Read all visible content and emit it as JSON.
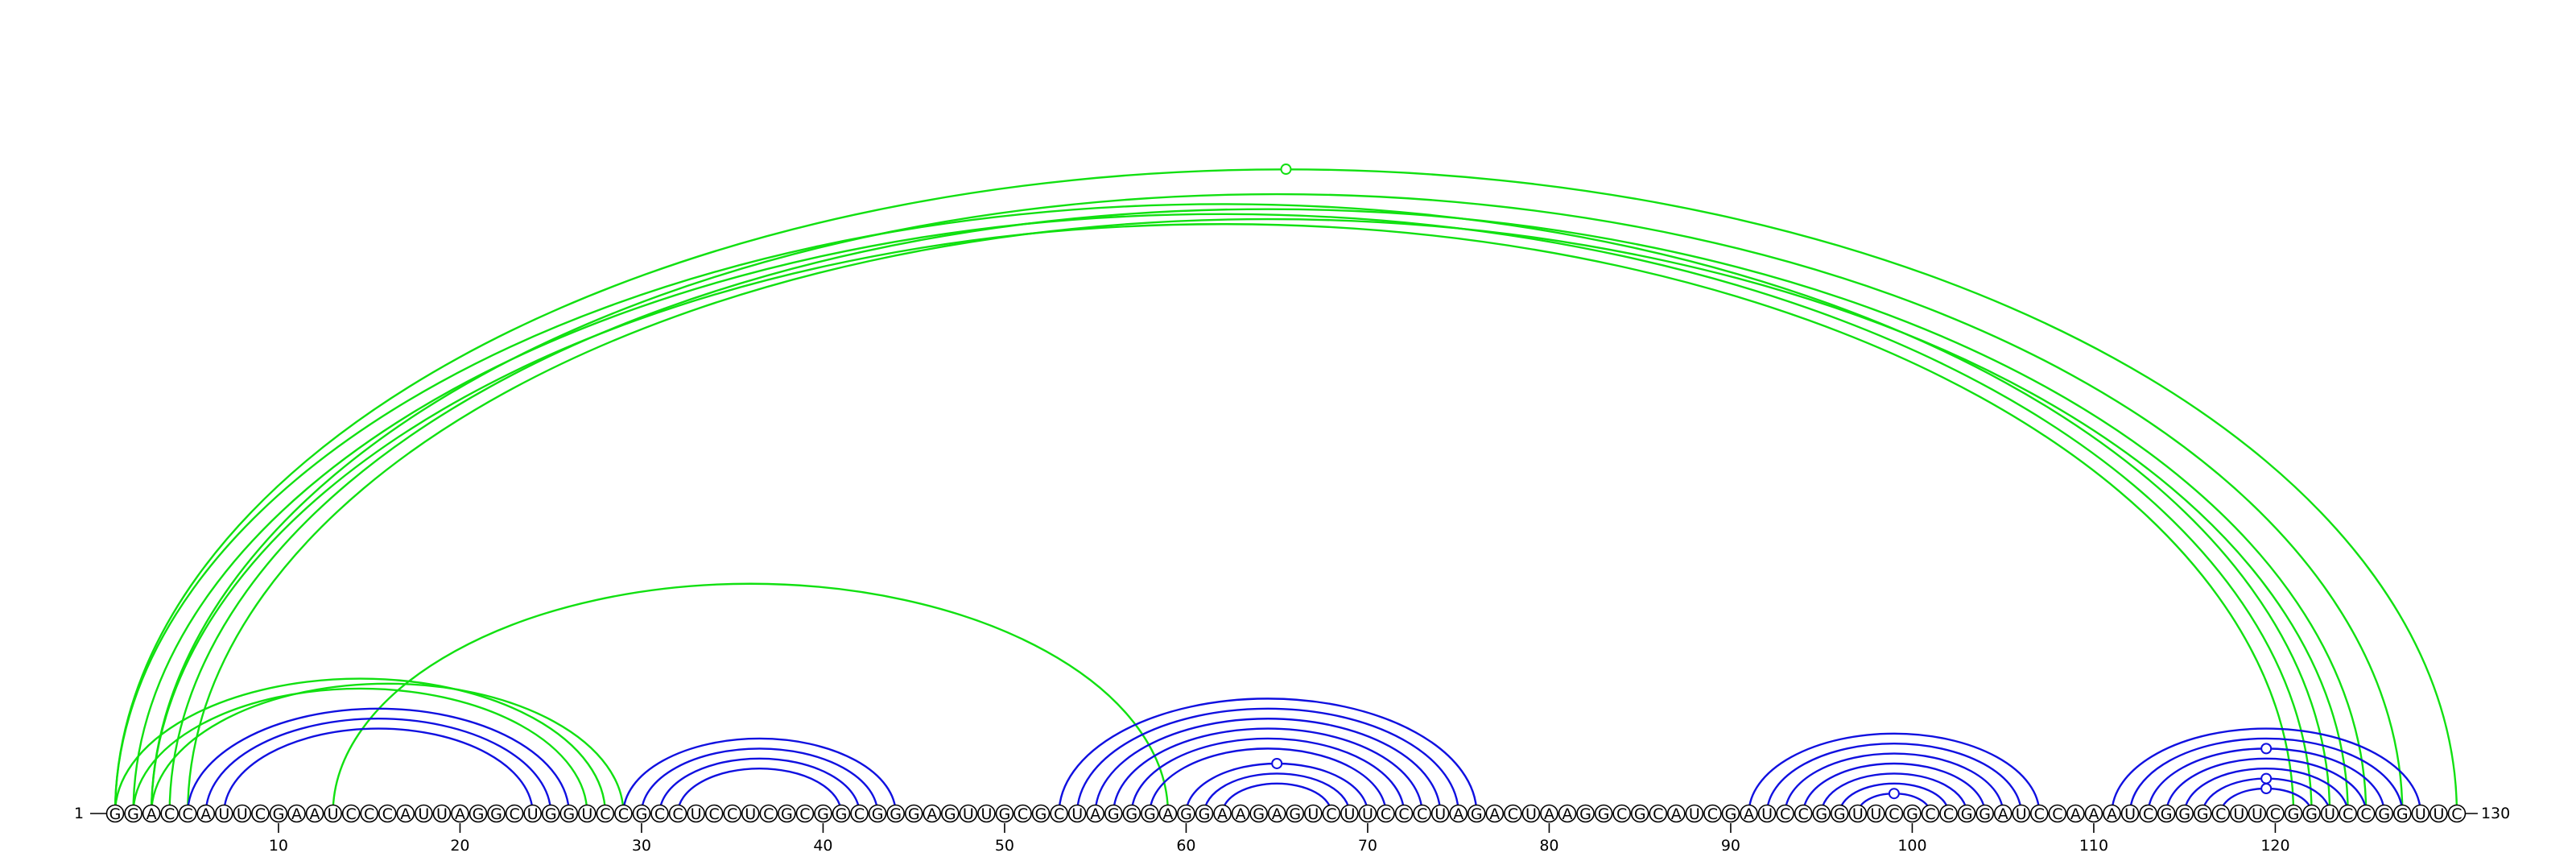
{
  "sequence": "GGACCAUUCGAAUCCCAUUAGGCUGGUCCGCCUCCUCGCGGCGGGAGUUGCGCUAGGGAGGAAGAGUCUUCCCUAGACUAAGGCGCAUCGAUCCGGUUCGCCGGAUCCAAAUCGGGCUUCGGUCCGGUUC",
  "labels": {
    "start": "1",
    "end": "130"
  },
  "ticks": [
    "10",
    "20",
    "30",
    "40",
    "50",
    "60",
    "70",
    "80",
    "90",
    "100",
    "110",
    "120"
  ],
  "colors": {
    "helix": "#1010e0",
    "pseudoknot": "#11e011",
    "text": "#000000"
  },
  "pairs": [
    {
      "i": 1,
      "j": 123,
      "group": "pseudoknot"
    },
    {
      "i": 2,
      "j": 122,
      "group": "pseudoknot"
    },
    {
      "i": 3,
      "j": 121,
      "group": "pseudoknot"
    },
    {
      "i": 4,
      "j": 125,
      "group": "pseudoknot"
    },
    {
      "i": 5,
      "j": 124,
      "group": "pseudoknot"
    },
    {
      "i": 1,
      "j": 130,
      "group": "pseudoknot",
      "marker": true
    },
    {
      "i": 3,
      "j": 127,
      "group": "pseudoknot"
    },
    {
      "i": 1,
      "j": 28,
      "group": "pseudoknot"
    },
    {
      "i": 2,
      "j": 27,
      "group": "pseudoknot"
    },
    {
      "i": 3,
      "j": 29,
      "group": "pseudoknot"
    },
    {
      "i": 13,
      "j": 59,
      "group": "pseudoknot"
    },
    {
      "i": 5,
      "j": 26,
      "group": "helix"
    },
    {
      "i": 6,
      "j": 25,
      "group": "helix"
    },
    {
      "i": 7,
      "j": 24,
      "group": "helix"
    },
    {
      "i": 29,
      "j": 44,
      "group": "helix"
    },
    {
      "i": 30,
      "j": 43,
      "group": "helix"
    },
    {
      "i": 31,
      "j": 42,
      "group": "helix"
    },
    {
      "i": 32,
      "j": 41,
      "group": "helix"
    },
    {
      "i": 53,
      "j": 76,
      "group": "helix"
    },
    {
      "i": 54,
      "j": 75,
      "group": "helix"
    },
    {
      "i": 55,
      "j": 74,
      "group": "helix"
    },
    {
      "i": 56,
      "j": 73,
      "group": "helix"
    },
    {
      "i": 57,
      "j": 72,
      "group": "helix"
    },
    {
      "i": 58,
      "j": 71,
      "group": "helix"
    },
    {
      "i": 60,
      "j": 70,
      "group": "helix",
      "marker": true
    },
    {
      "i": 61,
      "j": 69,
      "group": "helix"
    },
    {
      "i": 62,
      "j": 68,
      "group": "helix"
    },
    {
      "i": 91,
      "j": 107,
      "group": "helix"
    },
    {
      "i": 92,
      "j": 106,
      "group": "helix"
    },
    {
      "i": 93,
      "j": 105,
      "group": "helix"
    },
    {
      "i": 94,
      "j": 104,
      "group": "helix"
    },
    {
      "i": 95,
      "j": 103,
      "group": "helix"
    },
    {
      "i": 96,
      "j": 102,
      "group": "helix"
    },
    {
      "i": 97,
      "j": 101,
      "group": "helix",
      "marker": true
    },
    {
      "i": 111,
      "j": 128,
      "group": "helix"
    },
    {
      "i": 112,
      "j": 127,
      "group": "helix"
    },
    {
      "i": 113,
      "j": 126,
      "group": "helix",
      "marker": true
    },
    {
      "i": 114,
      "j": 125,
      "group": "helix"
    },
    {
      "i": 115,
      "j": 124,
      "group": "helix"
    },
    {
      "i": 116,
      "j": 123,
      "group": "helix",
      "marker": true
    },
    {
      "i": 117,
      "j": 122,
      "group": "helix",
      "marker": true
    }
  ]
}
